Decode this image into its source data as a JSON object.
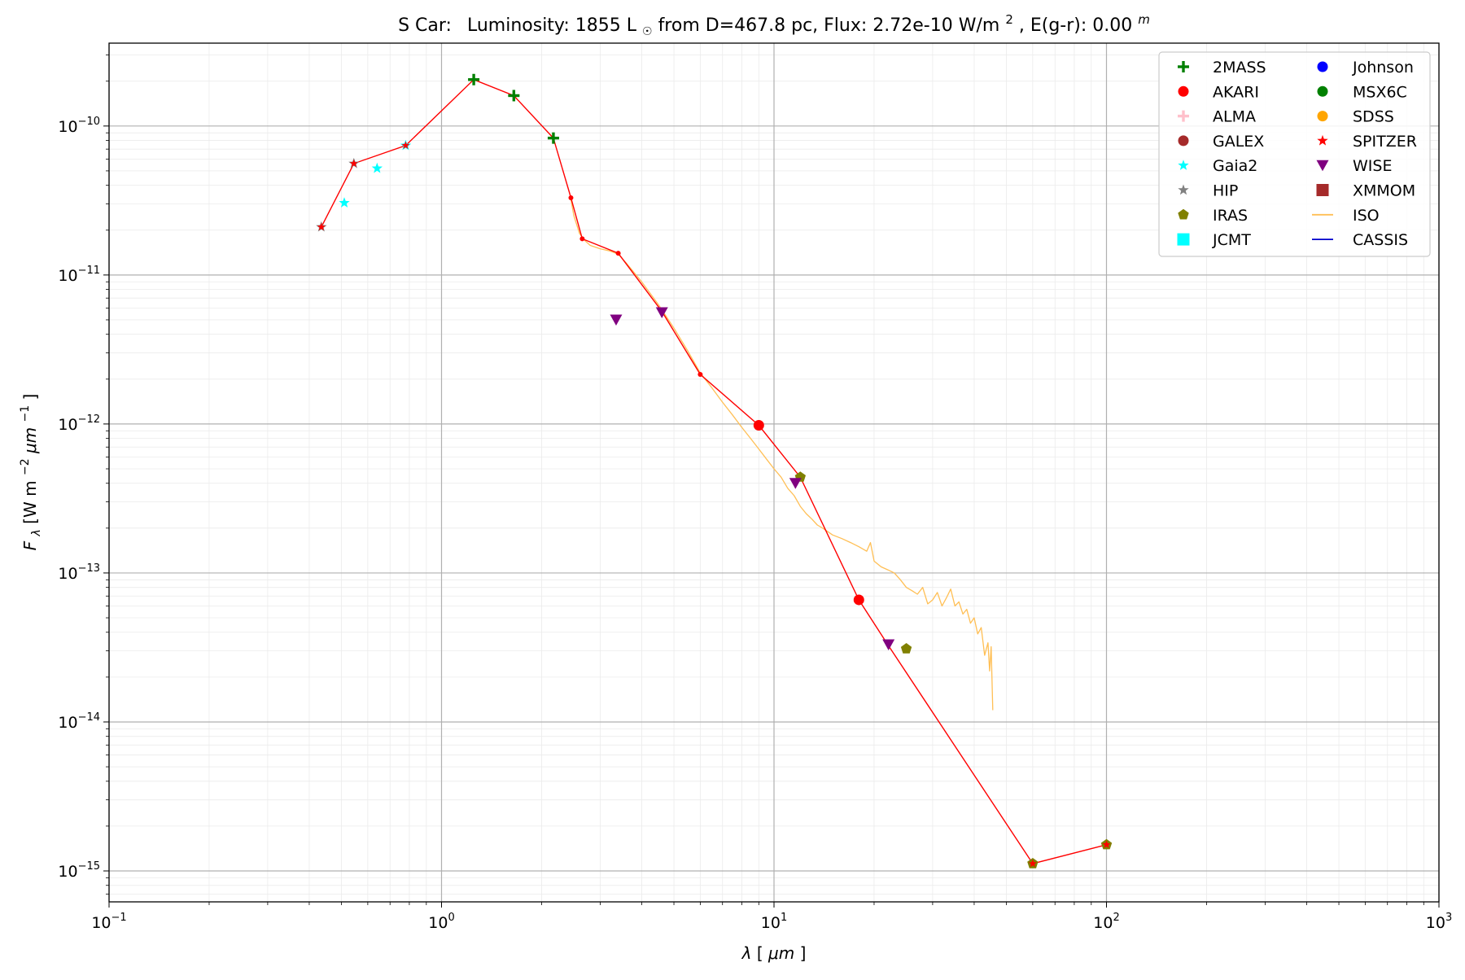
{
  "chart_data": {
    "type": "scatter",
    "title": {
      "star": "S Car:",
      "lum_prefix": "Luminosity: 1855 L",
      "lum_suffix": " from D=467.8 pc, Flux: 2.72e-10 W/m",
      "flux_exp": "2",
      "ext_prefix": ", E(g-r): 0.00",
      "ext_sup": "m"
    },
    "xlabel": {
      "sym": "λ",
      "unit": " [",
      "unit_sym": "μm",
      "close": "]"
    },
    "ylabel": {
      "sym": "F",
      "sub": "λ",
      "mid": " [W m",
      "exp1": "−2",
      "mid2": "μm",
      "exp2": "−1",
      "close": "]"
    },
    "x_scale": "log",
    "y_scale": "log",
    "xlim": [
      0.1,
      1000
    ],
    "ylim": [
      6.2e-16,
      3.6e-10
    ],
    "grid": true,
    "x_ticks": [
      {
        "value": 0.1,
        "base": "10",
        "exp": "−1"
      },
      {
        "value": 1,
        "base": "10",
        "exp": "0"
      },
      {
        "value": 10,
        "base": "10",
        "exp": "1"
      },
      {
        "value": 100,
        "base": "10",
        "exp": "2"
      },
      {
        "value": 1000,
        "base": "10",
        "exp": "3"
      }
    ],
    "y_ticks": [
      {
        "value": 1e-15,
        "base": "10",
        "exp": "−15"
      },
      {
        "value": 1e-14,
        "base": "10",
        "exp": "−14"
      },
      {
        "value": 1e-13,
        "base": "10",
        "exp": "−13"
      },
      {
        "value": 1e-12,
        "base": "10",
        "exp": "−12"
      },
      {
        "value": 1e-11,
        "base": "10",
        "exp": "−11"
      },
      {
        "value": 1e-10,
        "base": "10",
        "exp": "−10"
      }
    ],
    "legend": {
      "placement": "top-right",
      "columns": [
        [
          {
            "name": "2MASS",
            "marker": "plus",
            "color": "#008000"
          },
          {
            "name": "AKARI",
            "marker": "circle",
            "color": "#ff0000"
          },
          {
            "name": "ALMA",
            "marker": "plus",
            "color": "#ffc0cb"
          },
          {
            "name": "GALEX",
            "marker": "circle",
            "color": "#a52a2a"
          },
          {
            "name": "Gaia2",
            "marker": "star",
            "color": "#00ffff"
          },
          {
            "name": "HIP",
            "marker": "star",
            "color": "#808080"
          },
          {
            "name": "IRAS",
            "marker": "pentagon",
            "color": "#808000"
          },
          {
            "name": "JCMT",
            "marker": "square",
            "color": "#00ffff"
          }
        ],
        [
          {
            "name": "Johnson",
            "marker": "circle",
            "color": "#0000ff"
          },
          {
            "name": "MSX6C",
            "marker": "circle",
            "color": "#008000"
          },
          {
            "name": "SDSS",
            "marker": "circle",
            "color": "#ffa500"
          },
          {
            "name": "SPITZER",
            "marker": "star",
            "color": "#ff0000"
          },
          {
            "name": "WISE",
            "marker": "triangle-down",
            "color": "#800080"
          },
          {
            "name": "XMMOM",
            "marker": "square",
            "color": "#a52a2a"
          },
          {
            "name": "ISO",
            "marker": "line",
            "color": "#ffbf55"
          },
          {
            "name": "CASSIS",
            "marker": "line",
            "color": "#0000cc"
          }
        ]
      ]
    },
    "sed_line": {
      "color": "#ff0000",
      "points": [
        [
          0.435,
          2.1e-11
        ],
        [
          0.545,
          5.6e-11
        ],
        [
          0.78,
          7.4e-11
        ],
        [
          1.25,
          2.05e-10
        ],
        [
          1.65,
          1.6e-10
        ],
        [
          2.17,
          8.3e-11
        ],
        [
          2.45,
          3.3e-11
        ],
        [
          2.65,
          1.75e-11
        ],
        [
          3.4,
          1.4e-11
        ],
        [
          4.6,
          5.7e-12
        ],
        [
          6.0,
          2.15e-12
        ],
        [
          9.0,
          9.8e-13
        ],
        [
          12.0,
          4.4e-13
        ],
        [
          18.0,
          6.6e-14
        ],
        [
          22.0,
          3.3e-14
        ],
        [
          60.0,
          1.12e-15
        ],
        [
          100.0,
          1.5e-15
        ]
      ]
    },
    "sed_small_points": [
      [
        2.45,
        3.3e-11
      ],
      [
        2.65,
        1.75e-11
      ],
      [
        3.4,
        1.4e-11
      ],
      [
        6.0,
        2.15e-12
      ]
    ],
    "iso_spectrum": {
      "color": "#ffbf55",
      "points": [
        [
          2.45,
          3.2e-11
        ],
        [
          2.5,
          2.5e-11
        ],
        [
          2.6,
          1.9e-11
        ],
        [
          2.7,
          1.7e-11
        ],
        [
          2.8,
          1.58e-11
        ],
        [
          3.0,
          1.5e-11
        ],
        [
          3.2,
          1.45e-11
        ],
        [
          3.4,
          1.38e-11
        ],
        [
          3.6,
          1.2e-11
        ],
        [
          4.0,
          9e-12
        ],
        [
          4.5,
          6.3e-12
        ],
        [
          5.0,
          4.4e-12
        ],
        [
          5.5,
          3.1e-12
        ],
        [
          6.0,
          2.2e-12
        ],
        [
          6.5,
          1.75e-12
        ],
        [
          7.0,
          1.4e-12
        ],
        [
          7.5,
          1.15e-12
        ],
        [
          8.0,
          9.5e-13
        ],
        [
          8.5,
          8e-13
        ],
        [
          9.0,
          6.8e-13
        ],
        [
          9.5,
          5.8e-13
        ],
        [
          10.0,
          5e-13
        ],
        [
          10.5,
          4.4e-13
        ],
        [
          11.0,
          3.7e-13
        ],
        [
          11.5,
          3.3e-13
        ],
        [
          12.0,
          2.8e-13
        ],
        [
          12.5,
          2.5e-13
        ],
        [
          13.0,
          2.3e-13
        ],
        [
          13.5,
          2.1e-13
        ],
        [
          14.0,
          2e-13
        ],
        [
          15.0,
          1.8e-13
        ],
        [
          16.0,
          1.7e-13
        ],
        [
          17.0,
          1.6e-13
        ],
        [
          18.0,
          1.5e-13
        ],
        [
          19.0,
          1.4e-13
        ],
        [
          19.5,
          1.6e-13
        ],
        [
          20.0,
          1.2e-13
        ],
        [
          21.0,
          1.1e-13
        ],
        [
          22.0,
          1.05e-13
        ],
        [
          23.0,
          1e-13
        ],
        [
          24.0,
          9e-14
        ],
        [
          25.0,
          8e-14
        ],
        [
          26.0,
          7.6e-14
        ],
        [
          27.0,
          7.2e-14
        ],
        [
          28.0,
          8e-14
        ],
        [
          29.0,
          6.2e-14
        ],
        [
          30.0,
          6.6e-14
        ],
        [
          31.0,
          7.4e-14
        ],
        [
          32.0,
          6e-14
        ],
        [
          33.0,
          6.8e-14
        ],
        [
          34.0,
          7.8e-14
        ],
        [
          35.0,
          6e-14
        ],
        [
          36.0,
          6.4e-14
        ],
        [
          37.0,
          5.3e-14
        ],
        [
          38.0,
          5.7e-14
        ],
        [
          39.0,
          4.6e-14
        ],
        [
          40.0,
          5e-14
        ],
        [
          41.0,
          3.9e-14
        ],
        [
          42.0,
          4.3e-14
        ],
        [
          43.0,
          2.8e-14
        ],
        [
          44.0,
          3.4e-14
        ],
        [
          44.5,
          2.2e-14
        ],
        [
          45.0,
          3.2e-14
        ],
        [
          45.5,
          1.2e-14
        ]
      ]
    },
    "series": [
      {
        "name": "2MASS",
        "marker": "plus",
        "color": "#008000",
        "points": [
          [
            1.25,
            2.05e-10
          ],
          [
            1.65,
            1.6e-10
          ],
          [
            2.17,
            8.3e-11
          ]
        ]
      },
      {
        "name": "Gaia2",
        "marker": "star",
        "color": "#00ffff",
        "points": [
          [
            0.51,
            3.05e-11
          ],
          [
            0.64,
            5.2e-11
          ],
          [
            0.78,
            7.4e-11
          ]
        ]
      },
      {
        "name": "HIP",
        "marker": "star",
        "color": "#808080",
        "points": [
          [
            0.435,
            2.1e-11
          ],
          [
            0.545,
            5.6e-11
          ]
        ]
      },
      {
        "name": "AKARI",
        "marker": "circle",
        "color": "#ff0000",
        "points": [
          [
            9.0,
            9.8e-13
          ],
          [
            18.0,
            6.6e-14
          ]
        ]
      },
      {
        "name": "IRAS",
        "marker": "pentagon",
        "color": "#808000",
        "points": [
          [
            12.0,
            4.4e-13
          ],
          [
            25.0,
            3.1e-14
          ],
          [
            60.0,
            1.12e-15
          ],
          [
            100.0,
            1.5e-15
          ]
        ]
      },
      {
        "name": "WISE",
        "marker": "triangle-down",
        "color": "#800080",
        "points": [
          [
            3.35,
            5e-12
          ],
          [
            4.6,
            5.6e-12
          ],
          [
            11.6,
            4e-13
          ],
          [
            22.1,
            3.3e-14
          ]
        ]
      },
      {
        "name": "SPITZER",
        "marker": "star",
        "color": "#ff0000",
        "points": [
          [
            0.435,
            2.1e-11
          ],
          [
            0.545,
            5.6e-11
          ],
          [
            0.78,
            7.4e-11
          ],
          [
            60.0,
            1.12e-15
          ],
          [
            100.0,
            1.5e-15
          ]
        ]
      }
    ]
  }
}
